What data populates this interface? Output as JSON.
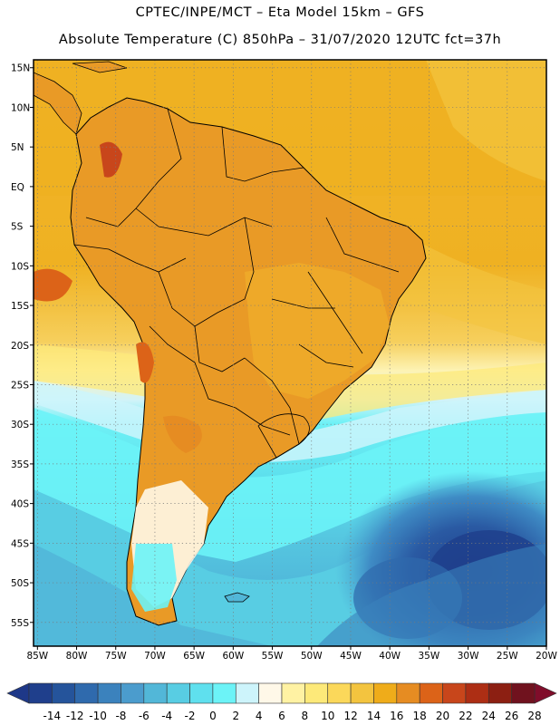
{
  "header": {
    "line1": "CPTEC/INPE/MCT –  Eta Model 15km – GFS",
    "line2": "Absolute Temperature (C) 850hPa – 31/07/2020 12UTC fct=37h"
  },
  "axes": {
    "lat_labels": [
      "15N",
      "10N",
      "5N",
      "EQ",
      "5S",
      "10S",
      "15S",
      "20S",
      "25S",
      "30S",
      "35S",
      "40S",
      "45S",
      "50S",
      "55S"
    ],
    "lon_labels": [
      "85W",
      "80W",
      "75W",
      "70W",
      "65W",
      "60W",
      "55W",
      "50W",
      "45W",
      "40W",
      "35W",
      "30W",
      "25W",
      "20W"
    ],
    "lat_range": [
      -58,
      16
    ],
    "lon_range": [
      -85.5,
      -20
    ]
  },
  "colorbar": {
    "colors": [
      "#1f3f8c",
      "#25549b",
      "#2f6aad",
      "#3b82bd",
      "#4b9ccd",
      "#52b7d8",
      "#58cde3",
      "#5fe0ee",
      "#6cf3f7",
      "#cdf4fb",
      "#fff8e8",
      "#fff2a3",
      "#fde979",
      "#fbd85a",
      "#f3c43f",
      "#efac1a",
      "#e68c22",
      "#dc6318",
      "#c8461b",
      "#ad2e14",
      "#8c1f12",
      "#70121e"
    ],
    "labels": [
      "-14",
      "-12",
      "-10",
      "-8",
      "-6",
      "-4",
      "-2",
      "0",
      "2",
      "4",
      "6",
      "8",
      "10",
      "12",
      "14",
      "16",
      "18",
      "20",
      "22",
      "24",
      "26",
      "28"
    ],
    "low_extend_color": "#1e3888",
    "high_extend_color": "#800d2a"
  }
}
